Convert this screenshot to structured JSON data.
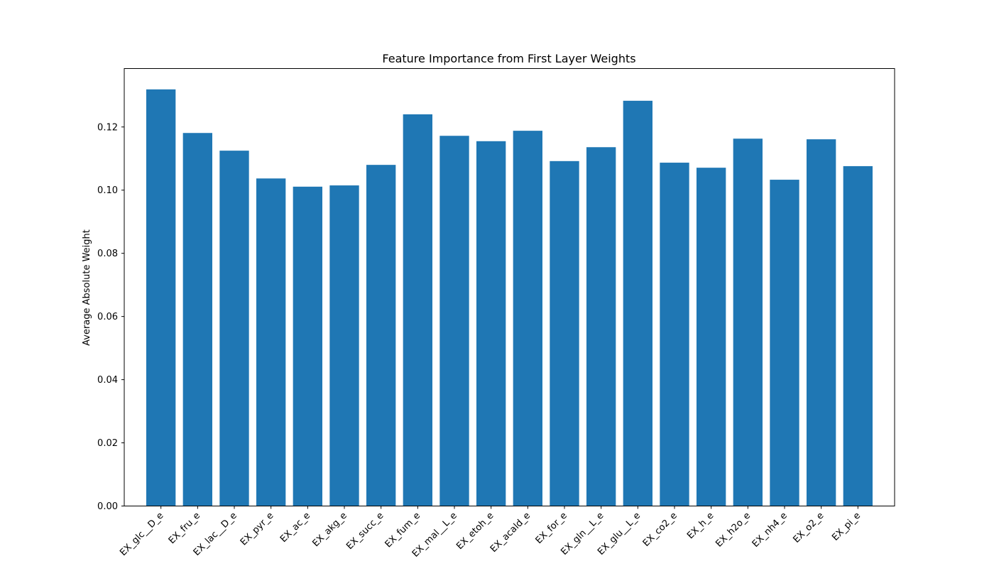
{
  "chart_data": {
    "type": "bar",
    "title": "Feature Importance from First Layer Weights",
    "xlabel": "",
    "ylabel": "Average Absolute Weight",
    "categories": [
      "EX_glc__D_e",
      "EX_fru_e",
      "EX_lac__D_e",
      "EX_pyr_e",
      "EX_ac_e",
      "EX_akg_e",
      "EX_succ_e",
      "EX_fum_e",
      "EX_mal__L_e",
      "EX_etoh_e",
      "EX_acald_e",
      "EX_for_e",
      "EX_gln__L_e",
      "EX_glu__L_e",
      "EX_co2_e",
      "EX_h_e",
      "EX_h2o_e",
      "EX_nh4_e",
      "EX_o2_e",
      "EX_pi_e"
    ],
    "values": [
      0.1319,
      0.1181,
      0.1125,
      0.1037,
      0.1011,
      0.1015,
      0.108,
      0.124,
      0.1172,
      0.1155,
      0.1188,
      0.1092,
      0.1136,
      0.1283,
      0.1087,
      0.1071,
      0.1163,
      0.1033,
      0.1161,
      0.1076
    ],
    "yticks": [
      "0.00",
      "0.02",
      "0.04",
      "0.06",
      "0.08",
      "0.10",
      "0.12"
    ],
    "ylim": [
      0,
      0.1385
    ],
    "bar_color": "#1f77b4",
    "grid": false,
    "legend": "none"
  }
}
